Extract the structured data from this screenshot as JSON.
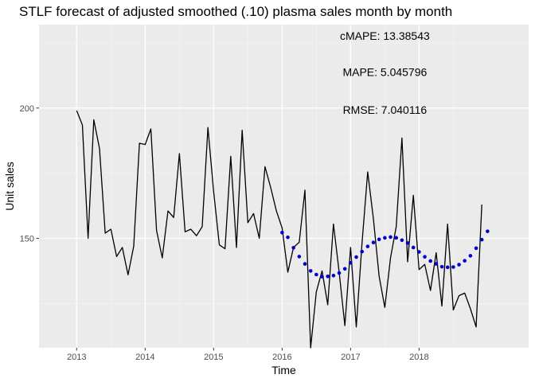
{
  "chart_data": {
    "type": "line",
    "title": "STLF forecast of adjusted smoothed (.10) plasma sales month by month",
    "xlabel": "Time",
    "ylabel": "Unit sales",
    "xlim": [
      2012.45,
      2019.6
    ],
    "ylim": [
      108,
      232
    ],
    "x_ticks": [
      2013,
      2014,
      2015,
      2016,
      2017,
      2018
    ],
    "x_tick_labels": [
      "2013",
      "2014",
      "2015",
      "2016",
      "2017",
      "2018"
    ],
    "y_ticks": [
      150,
      200
    ],
    "y_tick_labels": [
      "150",
      "200"
    ],
    "grid": true,
    "annotations": [
      {
        "text": "cMAPE:  13.38543",
        "x": 2017.5,
        "y": 227.7
      },
      {
        "text": "MAPE:  5.045796",
        "x": 2017.5,
        "y": 213.8
      },
      {
        "text": "RMSE:  7.040116",
        "x": 2017.5,
        "y": 199.3
      }
    ],
    "series": [
      {
        "type": "line",
        "color": "#000000",
        "x_start": 2013.0,
        "step": 0.08333,
        "values": [
          199,
          193.5,
          150,
          195.5,
          184.5,
          152,
          153.5,
          143,
          146.5,
          136,
          147,
          186.5,
          186,
          192,
          153,
          142.5,
          160.5,
          158,
          182.5,
          152.5,
          153.5,
          151,
          154.5,
          192.5,
          168,
          147.5,
          146,
          181.5,
          146.5,
          191.5,
          156,
          159.5,
          150,
          177.5,
          169.5,
          160.5,
          154,
          137,
          146.5,
          148.5,
          168.5,
          108,
          129.5,
          137.5,
          124.5,
          155.5,
          137,
          116.5,
          146.5,
          116,
          148,
          175.5,
          157.5,
          135.5,
          123.5,
          142.5,
          154.5,
          188.5,
          141,
          166.5,
          138,
          140,
          130,
          144.5,
          124,
          155.5,
          122.5,
          128,
          129,
          123,
          116,
          163
        ]
      },
      {
        "type": "points",
        "color": "#0000CD",
        "x_start": 2016.0,
        "step": 0.08333,
        "values": [
          152.2,
          150.4,
          146.4,
          143.0,
          140.2,
          137.5,
          136.1,
          135.3,
          135.4,
          135.7,
          136.7,
          138.3,
          140.6,
          142.8,
          144.9,
          146.9,
          148.4,
          149.6,
          150.2,
          150.5,
          150.2,
          149.3,
          148.2,
          146.5,
          144.8,
          142.9,
          141.3,
          140.2,
          139.1,
          138.9,
          139.0,
          139.9,
          141.4,
          143.3,
          146.2,
          149.5,
          152.7
        ]
      }
    ]
  }
}
